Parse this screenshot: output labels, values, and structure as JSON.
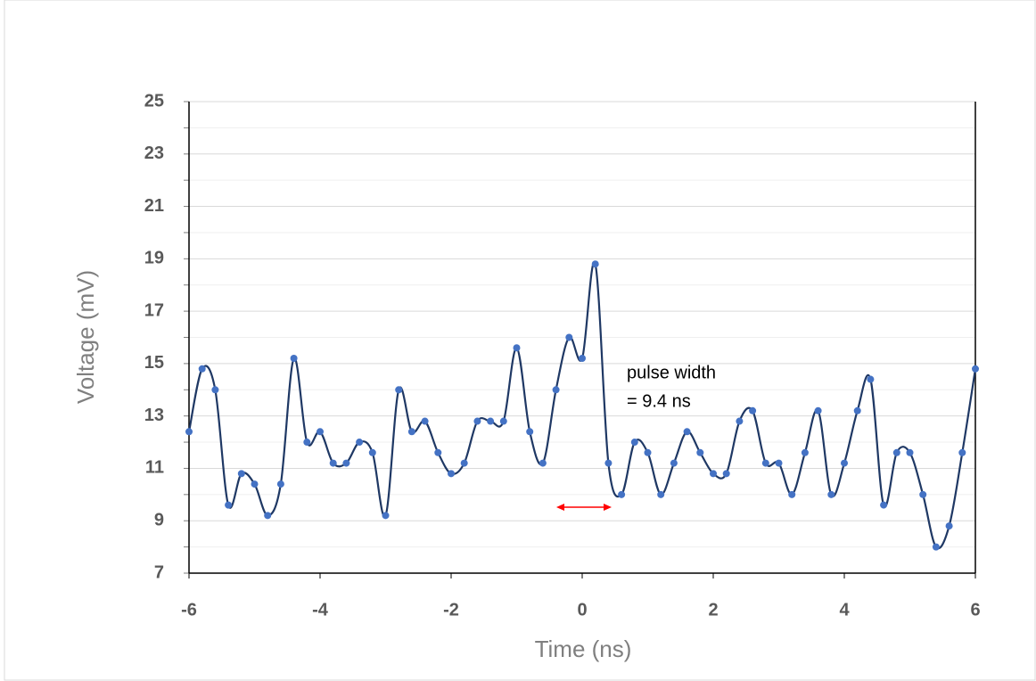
{
  "chart_data": {
    "type": "line",
    "x_label": "Time (ns)",
    "y_label": "Voltage (mV)",
    "annotation": [
      "pulse width",
      "= 9.4 ns"
    ],
    "x": [
      -6,
      -5.8,
      -5.6,
      -5.4,
      -5.2,
      -5,
      -4.8,
      -4.6,
      -4.4,
      -4.2,
      -4,
      -3.8,
      -3.6,
      -3.4,
      -3.2,
      -3,
      -2.8,
      -2.6,
      -2.4,
      -2.2,
      -2,
      -1.8,
      -1.6,
      -1.4,
      -1.2,
      -1,
      -0.8,
      -0.6,
      -0.4,
      -0.2,
      0,
      0.2,
      0.4,
      0.6,
      0.8,
      1,
      1.2,
      1.4,
      1.6,
      1.8,
      2,
      2.2,
      2.4,
      2.6,
      2.8,
      3,
      3.2,
      3.4,
      3.6,
      3.8,
      4,
      4.2,
      4.4,
      4.6,
      4.8,
      5,
      5.2,
      5.4,
      5.6,
      5.8,
      6
    ],
    "series": [
      {
        "color": "#1f3864",
        "marker_color": "#4472c4",
        "values": [
          12.4,
          14.8,
          14.0,
          9.6,
          10.8,
          10.4,
          9.2,
          10.4,
          15.2,
          12.0,
          12.4,
          11.2,
          11.2,
          12.0,
          11.6,
          9.2,
          14.0,
          12.4,
          12.8,
          11.6,
          10.8,
          11.2,
          12.8,
          12.8,
          12.8,
          15.6,
          12.4,
          11.2,
          14.0,
          16.0,
          15.2,
          18.8,
          11.2,
          10.0,
          12.0,
          11.6,
          10.0,
          11.2,
          12.4,
          11.6,
          10.8,
          10.8,
          12.8,
          13.2,
          11.2,
          11.2,
          10.0,
          11.6,
          13.2,
          10.0,
          11.2,
          13.2,
          14.4,
          9.6,
          11.6,
          11.6,
          10.0,
          8.0,
          8.8,
          11.6,
          14.8
        ]
      }
    ],
    "xlim": [
      -6,
      6
    ],
    "xticks": [
      -6,
      -4,
      -2,
      0,
      2,
      4,
      6
    ],
    "ylim": [
      7,
      25
    ],
    "yticks": [
      7,
      9,
      11,
      13,
      15,
      17,
      19,
      21,
      23,
      25
    ],
    "yminorticks": [
      8,
      10,
      12,
      14,
      16,
      18,
      20,
      22,
      24
    ],
    "grid": true
  }
}
